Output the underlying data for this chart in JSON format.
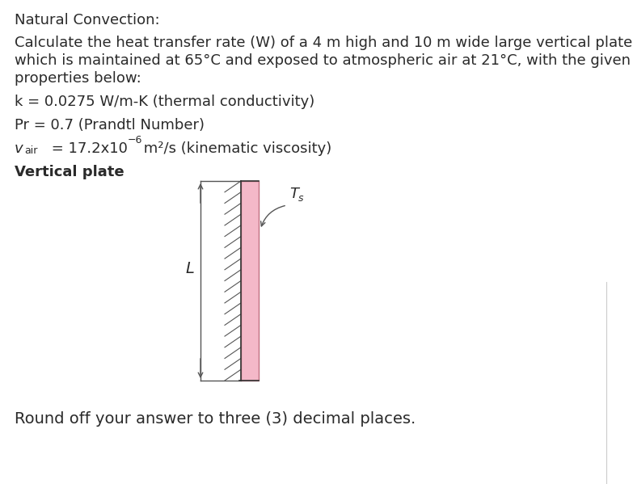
{
  "background_color": "#ffffff",
  "title_text": "Natural Convection:",
  "body_line1": "Calculate the heat transfer rate (W) of a 4 m high and 10 m wide large vertical plate",
  "body_line2": "which is maintained at 65°C and exposed to atmospheric air at 21°C, with the given",
  "body_line3": "properties below:",
  "prop1": "k = 0.0275 W/m-K (thermal conductivity)",
  "prop2": "Pr = 0.7 (Prandtl Number)",
  "diagram_label": "Vertical plate",
  "label_L": "L",
  "label_Ts": "T",
  "label_Ts_sub": "s",
  "footer_text": "Round off your answer to three (3) decimal places.",
  "plate_fill": "#f4b8c8",
  "plate_edge": "#c07080",
  "hatch_color": "#555555",
  "line_color": "#555555",
  "text_color": "#2a2a2a",
  "font_size_title": 13,
  "font_size_body": 13,
  "font_size_props": 13,
  "font_size_footer": 14
}
